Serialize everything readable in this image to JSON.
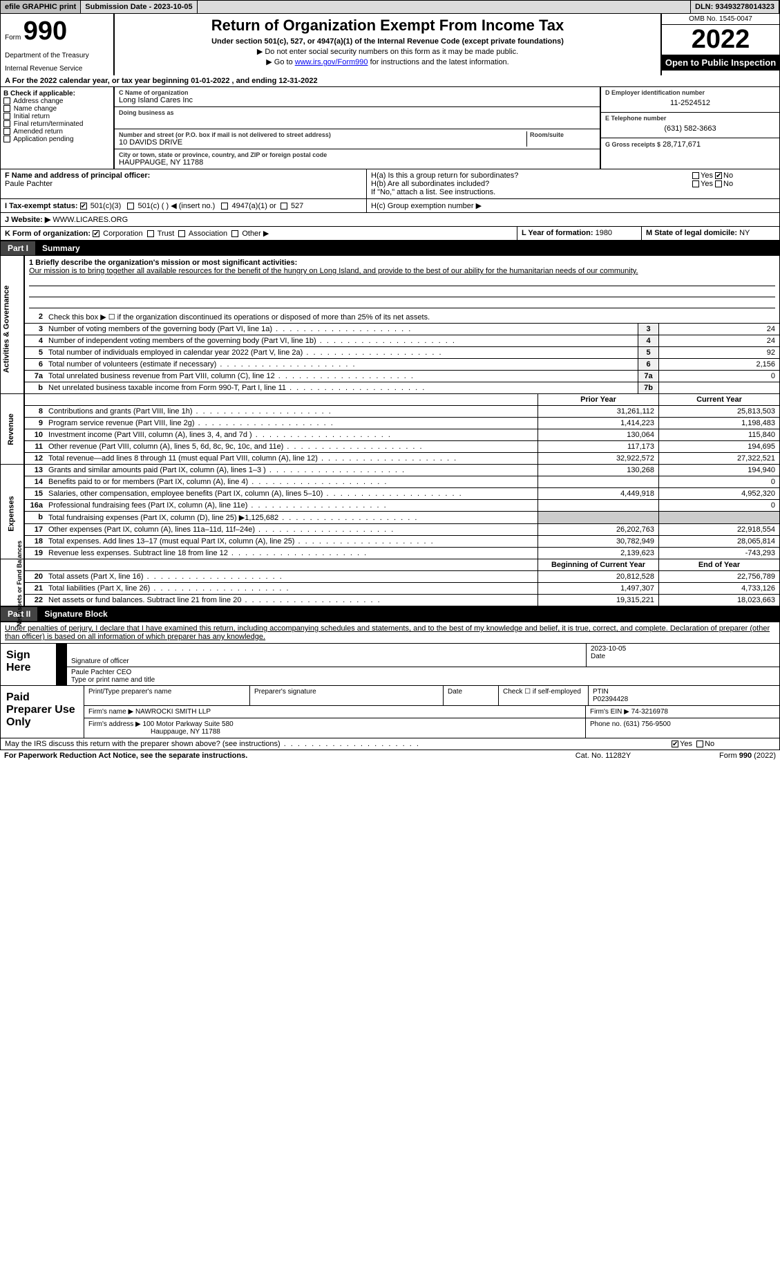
{
  "topbar": {
    "efile": "efile GRAPHIC print",
    "submission": "Submission Date - 2023-10-05",
    "dln": "DLN: 93493278014323"
  },
  "header": {
    "form_label": "Form",
    "form_number": "990",
    "dept1": "Department of the Treasury",
    "dept2": "Internal Revenue Service",
    "title": "Return of Organization Exempt From Income Tax",
    "subtitle": "Under section 501(c), 527, or 4947(a)(1) of the Internal Revenue Code (except private foundations)",
    "instr1": "▶ Do not enter social security numbers on this form as it may be made public.",
    "instr2_pre": "▶ Go to ",
    "instr2_link": "www.irs.gov/Form990",
    "instr2_post": " for instructions and the latest information.",
    "omb": "OMB No. 1545-0047",
    "year": "2022",
    "inspection": "Open to Public Inspection"
  },
  "section_a": "A For the 2022 calendar year, or tax year beginning 01-01-2022   , and ending 12-31-2022",
  "col_b": {
    "header": "B Check if applicable:",
    "opts": [
      "Address change",
      "Name change",
      "Initial return",
      "Final return/terminated",
      "Amended return",
      "Application pending"
    ]
  },
  "col_c": {
    "name_label": "C Name of organization",
    "name": "Long Island Cares Inc",
    "dba_label": "Doing business as",
    "dba": "",
    "addr_label": "Number and street (or P.O. box if mail is not delivered to street address)",
    "room_label": "Room/suite",
    "addr": "10 DAVIDS DRIVE",
    "city_label": "City or town, state or province, country, and ZIP or foreign postal code",
    "city": "HAUPPAUGE, NY  11788"
  },
  "col_d": {
    "ein_label": "D Employer identification number",
    "ein": "11-2524512",
    "tel_label": "E Telephone number",
    "tel": "(631) 582-3663",
    "gross_label": "G Gross receipts $",
    "gross": "28,717,671"
  },
  "row_f": {
    "label": "F Name and address of principal officer:",
    "officer": "Paule Pachter"
  },
  "row_h": {
    "ha": "H(a)  Is this a group return for subordinates?",
    "hb": "H(b)  Are all subordinates included?",
    "hb_note": "If \"No,\" attach a list. See instructions.",
    "hc": "H(c)  Group exemption number ▶",
    "yes": "Yes",
    "no": "No"
  },
  "row_i": {
    "label": "I   Tax-exempt status:",
    "c3": "501(c)(3)",
    "c": "501(c) (  ) ◀ (insert no.)",
    "a1": "4947(a)(1) or",
    "s527": "527"
  },
  "row_j": {
    "label": "J   Website: ▶",
    "val": "WWW.LICARES.ORG"
  },
  "row_k": {
    "label": "K Form of organization:",
    "corp": "Corporation",
    "trust": "Trust",
    "assoc": "Association",
    "other": "Other ▶",
    "l_label": "L Year of formation:",
    "l_val": "1980",
    "m_label": "M State of legal domicile:",
    "m_val": "NY"
  },
  "part1": {
    "num": "Part I",
    "title": "Summary"
  },
  "sidelabels": {
    "act": "Activities & Governance",
    "rev": "Revenue",
    "exp": "Expenses",
    "net": "Net Assets or Fund Balances"
  },
  "p1_mission": {
    "label": "1  Briefly describe the organization's mission or most significant activities:",
    "text": "Our mission is to bring together all available resources for the benefit of the hungry on Long Island, and provide to the best of our ability for the humanitarian needs of our community."
  },
  "p1_line2": "Check this box ▶ ☐  if the organization discontinued its operations or disposed of more than 25% of its net assets.",
  "p1_act_rows": [
    {
      "n": "3",
      "t": "Number of voting members of the governing body (Part VI, line 1a)",
      "c": "3",
      "v": "24"
    },
    {
      "n": "4",
      "t": "Number of independent voting members of the governing body (Part VI, line 1b)",
      "c": "4",
      "v": "24"
    },
    {
      "n": "5",
      "t": "Total number of individuals employed in calendar year 2022 (Part V, line 2a)",
      "c": "5",
      "v": "92"
    },
    {
      "n": "6",
      "t": "Total number of volunteers (estimate if necessary)",
      "c": "6",
      "v": "2,156"
    },
    {
      "n": "7a",
      "t": "Total unrelated business revenue from Part VIII, column (C), line 12",
      "c": "7a",
      "v": "0"
    },
    {
      "n": "b",
      "t": "Net unrelated business taxable income from Form 990-T, Part I, line 11",
      "c": "7b",
      "v": ""
    }
  ],
  "p1_yr_header": {
    "prior": "Prior Year",
    "current": "Current Year"
  },
  "p1_rev_rows": [
    {
      "n": "8",
      "t": "Contributions and grants (Part VIII, line 1h)",
      "p": "31,261,112",
      "c": "25,813,503"
    },
    {
      "n": "9",
      "t": "Program service revenue (Part VIII, line 2g)",
      "p": "1,414,223",
      "c": "1,198,483"
    },
    {
      "n": "10",
      "t": "Investment income (Part VIII, column (A), lines 3, 4, and 7d )",
      "p": "130,064",
      "c": "115,840"
    },
    {
      "n": "11",
      "t": "Other revenue (Part VIII, column (A), lines 5, 6d, 8c, 9c, 10c, and 11e)",
      "p": "117,173",
      "c": "194,695"
    },
    {
      "n": "12",
      "t": "Total revenue—add lines 8 through 11 (must equal Part VIII, column (A), line 12)",
      "p": "32,922,572",
      "c": "27,322,521"
    }
  ],
  "p1_exp_rows": [
    {
      "n": "13",
      "t": "Grants and similar amounts paid (Part IX, column (A), lines 1–3 )",
      "p": "130,268",
      "c": "194,940"
    },
    {
      "n": "14",
      "t": "Benefits paid to or for members (Part IX, column (A), line 4)",
      "p": "",
      "c": "0"
    },
    {
      "n": "15",
      "t": "Salaries, other compensation, employee benefits (Part IX, column (A), lines 5–10)",
      "p": "4,449,918",
      "c": "4,952,320"
    },
    {
      "n": "16a",
      "t": "Professional fundraising fees (Part IX, column (A), line 11e)",
      "p": "",
      "c": "0"
    },
    {
      "n": "b",
      "t": "Total fundraising expenses (Part IX, column (D), line 25) ▶1,125,682",
      "p": "shade",
      "c": "shade"
    },
    {
      "n": "17",
      "t": "Other expenses (Part IX, column (A), lines 11a–11d, 11f–24e)",
      "p": "26,202,763",
      "c": "22,918,554"
    },
    {
      "n": "18",
      "t": "Total expenses. Add lines 13–17 (must equal Part IX, column (A), line 25)",
      "p": "30,782,949",
      "c": "28,065,814"
    },
    {
      "n": "19",
      "t": "Revenue less expenses. Subtract line 18 from line 12",
      "p": "2,139,623",
      "c": "-743,293"
    }
  ],
  "p1_net_header": {
    "begin": "Beginning of Current Year",
    "end": "End of Year"
  },
  "p1_net_rows": [
    {
      "n": "20",
      "t": "Total assets (Part X, line 16)",
      "p": "20,812,528",
      "c": "22,756,789"
    },
    {
      "n": "21",
      "t": "Total liabilities (Part X, line 26)",
      "p": "1,497,307",
      "c": "4,733,126"
    },
    {
      "n": "22",
      "t": "Net assets or fund balances. Subtract line 21 from line 20",
      "p": "19,315,221",
      "c": "18,023,663"
    }
  ],
  "part2": {
    "num": "Part II",
    "title": "Signature Block"
  },
  "sig_decl": "Under penalties of perjury, I declare that I have examined this return, including accompanying schedules and statements, and to the best of my knowledge and belief, it is true, correct, and complete. Declaration of preparer (other than officer) is based on all information of which preparer has any knowledge.",
  "sign": {
    "here": "Sign Here",
    "sig_label": "Signature of officer",
    "date": "2023-10-05",
    "date_label": "Date",
    "name": "Paule Pachter CEO",
    "name_label": "Type or print name and title"
  },
  "paid": {
    "label": "Paid Preparer Use Only",
    "name_label": "Print/Type preparer's name",
    "sig_label": "Preparer's signature",
    "date_label": "Date",
    "check_label": "Check ☐ if self-employed",
    "ptin_label": "PTIN",
    "ptin": "P02394428",
    "firm_label": "Firm's name   ▶",
    "firm": "NAWROCKI SMITH LLP",
    "ein_label": "Firm's EIN ▶",
    "ein": "74-3216978",
    "addr_label": "Firm's address ▶",
    "addr": "100 Motor Parkway Suite 580",
    "addr2": "Hauppauge, NY  11788",
    "phone_label": "Phone no.",
    "phone": "(631) 756-9500"
  },
  "footer": {
    "discuss": "May the IRS discuss this return with the preparer shown above? (see instructions)",
    "yes": "Yes",
    "no": "No",
    "paperwork": "For Paperwork Reduction Act Notice, see the separate instructions.",
    "cat": "Cat. No. 11282Y",
    "form": "Form 990 (2022)"
  }
}
